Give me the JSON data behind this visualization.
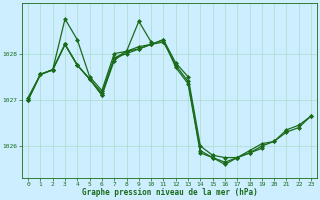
{
  "title": "Graphe pression niveau de la mer (hPa)",
  "bg_color": "#cceeff",
  "grid_color": "#aaddcc",
  "line_color": "#1a6b1a",
  "marker": "D",
  "markersize": 2.0,
  "linewidth": 0.9,
  "xlim": [
    -0.5,
    23.5
  ],
  "ylim": [
    1025.3,
    1029.1
  ],
  "yticks": [
    1026,
    1027,
    1028
  ],
  "xticks": [
    0,
    1,
    2,
    3,
    4,
    5,
    6,
    7,
    8,
    9,
    10,
    11,
    12,
    13,
    14,
    15,
    16,
    17,
    18,
    19,
    20,
    21,
    22,
    23
  ],
  "series": [
    {
      "x": [
        0,
        1,
        2,
        3,
        4,
        5,
        6,
        7,
        8,
        9,
        10,
        11,
        12,
        13,
        14,
        15,
        16,
        17,
        18,
        19,
        20,
        21,
        22,
        23
      ],
      "y": [
        1027.0,
        1027.55,
        1027.65,
        1028.2,
        1027.75,
        1027.45,
        1027.15,
        1027.9,
        1028.05,
        1028.15,
        1028.2,
        1028.3,
        1027.8,
        1027.5,
        1026.0,
        1025.8,
        1025.75,
        1025.75,
        1025.9,
        1026.05,
        1026.1,
        1026.35,
        1026.45,
        1026.65
      ]
    },
    {
      "x": [
        0,
        1,
        2,
        3,
        4,
        5,
        6,
        7,
        8,
        9,
        10
      ],
      "y": [
        1027.0,
        1027.55,
        1027.65,
        1028.75,
        1028.3,
        1027.5,
        1027.2,
        1028.0,
        1028.05,
        1028.7,
        1028.25
      ]
    },
    {
      "x": [
        0,
        1,
        2,
        3,
        4,
        5,
        6,
        7,
        8,
        9,
        10,
        11,
        12,
        13,
        14,
        15,
        16,
        17,
        18,
        19
      ],
      "y": [
        1027.0,
        1027.55,
        1027.65,
        1028.2,
        1027.75,
        1027.45,
        1027.1,
        1027.85,
        1028.05,
        1028.1,
        1028.2,
        1028.3,
        1027.7,
        1027.35,
        1025.85,
        1025.75,
        1025.6,
        1025.75,
        1025.85,
        1025.95
      ]
    },
    {
      "x": [
        0,
        1,
        2,
        3,
        4,
        5,
        6,
        7,
        8,
        9,
        10,
        11,
        12,
        13,
        14,
        15,
        16,
        17,
        18,
        19,
        20,
        21,
        22,
        23
      ],
      "y": [
        1027.05,
        1027.55,
        1027.65,
        1028.2,
        1027.75,
        1027.45,
        1027.1,
        1027.9,
        1028.0,
        1028.1,
        1028.2,
        1028.25,
        1027.75,
        1027.4,
        1025.9,
        1025.75,
        1025.65,
        1025.75,
        1025.85,
        1026.0,
        1026.1,
        1026.3,
        1026.4,
        1026.65
      ]
    }
  ]
}
